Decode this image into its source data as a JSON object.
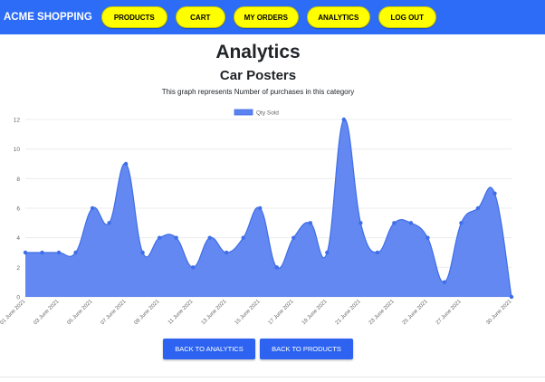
{
  "navbar": {
    "brand": "ACME SHOPPING",
    "items": [
      {
        "label": "PRODUCTS"
      },
      {
        "label": "CART"
      },
      {
        "label": "MY ORDERS"
      },
      {
        "label": "ANALYTICS"
      },
      {
        "label": "LOG OUT"
      }
    ]
  },
  "page": {
    "title": "Analytics",
    "subtitle": "Car Posters",
    "description": "This graph represents Number of purchases in this category"
  },
  "buttons": {
    "back_analytics": "BACK TO ANALYTICS",
    "back_products": "BACK TO PRODUCTS"
  },
  "colors": {
    "navbar": "#2d6cf6",
    "nav_button": "#ffff00",
    "series_fill": "#5b82f0",
    "series_line": "#3f6ee8",
    "button": "#2d63f0"
  },
  "chart_data": {
    "type": "area",
    "legend": {
      "label": "Qty Sold",
      "position": "top-center"
    },
    "ylim": [
      0,
      12
    ],
    "yticks": [
      0,
      2,
      4,
      6,
      8,
      10,
      12
    ],
    "grid": true,
    "x": [
      "01 June 2021",
      "02 June 2021",
      "03 June 2021",
      "04 June 2021",
      "05 June 2021",
      "06 June 2021",
      "07 June 2021",
      "08 June 2021",
      "09 June 2021",
      "10 June 2021",
      "11 June 2021",
      "12 June 2021",
      "13 June 2021",
      "14 June 2021",
      "15 June 2021",
      "16 June 2021",
      "17 June 2021",
      "18 June 2021",
      "19 June 2021",
      "20 June 2021",
      "21 June 2021",
      "22 June 2021",
      "23 June 2021",
      "24 June 2021",
      "25 June 2021",
      "26 June 2021",
      "27 June 2021",
      "28 June 2021",
      "29 June 2021",
      "30 June 2021"
    ],
    "xtick_labels": [
      "01 June 2021",
      "03 June 2021",
      "05 June 2021",
      "07 June 2021",
      "09 June 2021",
      "11 June 2021",
      "13 June 2021",
      "15 June 2021",
      "17 June 2021",
      "19 June 2021",
      "21 June 2021",
      "23 June 2021",
      "25 June 2021",
      "27 June 2021",
      "30 June 2021"
    ],
    "series": [
      {
        "name": "Qty Sold",
        "values": [
          3,
          3,
          3,
          3,
          6,
          5,
          9,
          3,
          4,
          4,
          2,
          4,
          3,
          4,
          6,
          2,
          4,
          5,
          3,
          12,
          5,
          3,
          5,
          5,
          4,
          1,
          5,
          6,
          7,
          0
        ]
      }
    ]
  }
}
